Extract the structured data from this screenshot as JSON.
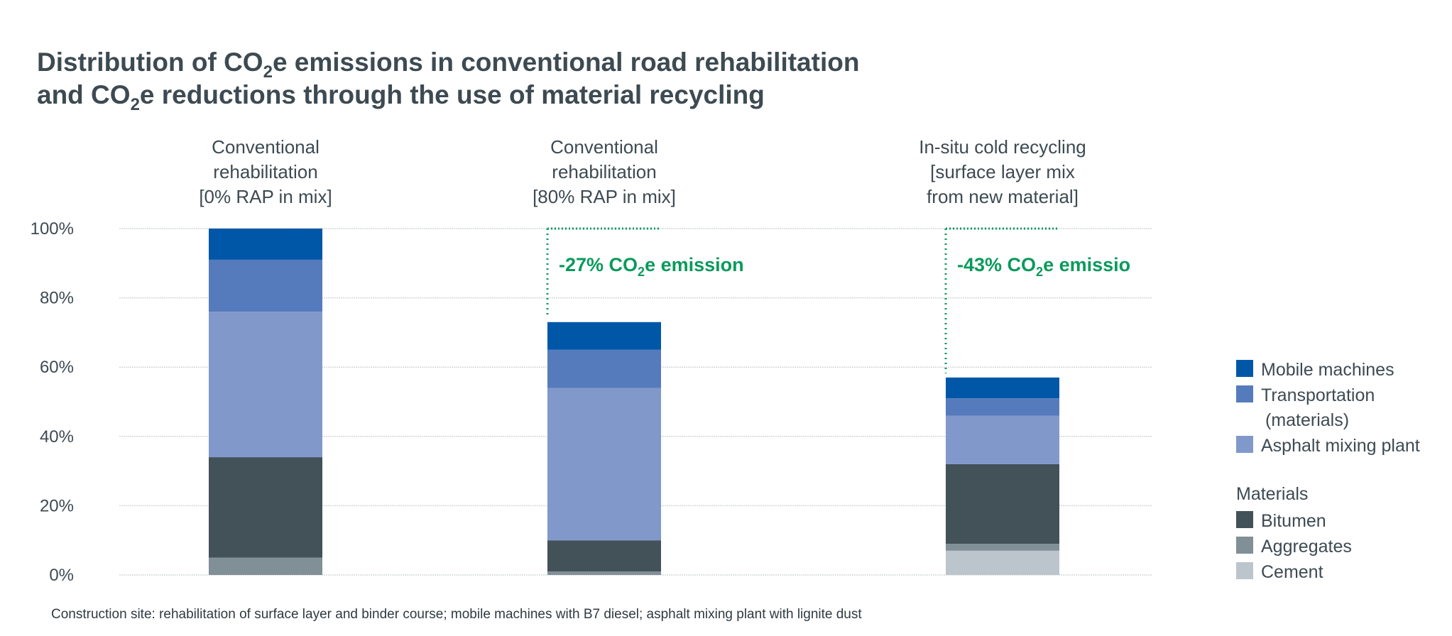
{
  "chart_data": {
    "type": "bar",
    "stacked": true,
    "title_lines": [
      [
        "Distribution of CO",
        "2",
        "e emissions in conventional road rehabilitation"
      ],
      [
        "and CO",
        "2",
        "e reductions through the use of material recycling"
      ]
    ],
    "categories": [
      [
        "Conventional",
        "rehabilitation",
        "[0% RAP in mix]"
      ],
      [
        "Conventional",
        "rehabilitation",
        "[80% RAP in mix]"
      ],
      [
        "In-situ cold recycling",
        "[surface layer mix",
        "from new material]"
      ]
    ],
    "ylim": [
      0,
      100
    ],
    "yticks": [
      "0%",
      "20%",
      "40%",
      "60%",
      "80%",
      "100%"
    ],
    "grid": true,
    "legend_position": "right",
    "series": [
      {
        "name": "Cement",
        "group": "Materials",
        "color": "#bcc5cc",
        "values": [
          0,
          0,
          7
        ]
      },
      {
        "name": "Aggregates",
        "group": "Materials",
        "color": "#818f96",
        "values": [
          5,
          1,
          2
        ]
      },
      {
        "name": "Bitumen",
        "group": "Materials",
        "color": "#435159",
        "values": [
          29,
          9,
          23
        ]
      },
      {
        "name": "Asphalt mixing plant",
        "group": "",
        "color": "#8198cb",
        "values": [
          42,
          44,
          14
        ]
      },
      {
        "name": "Transportation (materials)",
        "group": "",
        "color": "#557bbd",
        "values": [
          15,
          11,
          5
        ]
      },
      {
        "name": "Mobile machines",
        "group": "",
        "color": "#0057a8",
        "values": [
          9,
          8,
          6
        ]
      }
    ],
    "legend": {
      "top_items": [
        {
          "lines": [
            "Mobile machines"
          ],
          "color": "#0057a8"
        },
        {
          "lines": [
            "Transportation",
            "(materials)"
          ],
          "color": "#557bbd"
        },
        {
          "lines": [
            "Asphalt mixing plant"
          ],
          "color": "#8198cb"
        }
      ],
      "group_title": "Materials",
      "group_items": [
        {
          "lines": [
            "Bitumen"
          ],
          "color": "#435159"
        },
        {
          "lines": [
            "Aggregates"
          ],
          "color": "#818f96"
        },
        {
          "lines": [
            "Cement"
          ],
          "color": "#bcc5cc"
        }
      ]
    },
    "annotations": [
      {
        "category": 1,
        "parts": [
          "-27% CO",
          "2",
          "e emission"
        ]
      },
      {
        "category": 2,
        "parts": [
          "-43% CO",
          "2",
          "e emissio"
        ]
      }
    ],
    "annotation_color": "#0a9a5c",
    "footnote": "Construction site: rehabilitation of surface layer and binder course; mobile machines with B7 diesel; asphalt mixing plant with lignite dust"
  }
}
